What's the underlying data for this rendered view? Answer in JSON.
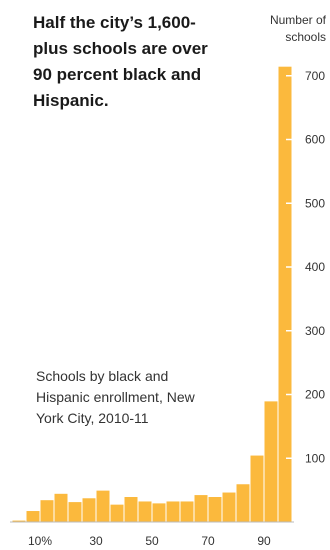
{
  "headline": "Half the city’s 1,600-plus schools are over 90 percent black and Hispanic.",
  "chart_data": {
    "type": "bar",
    "subtitle": "Schools by black and Hispanic enrollment, New York City, 2010-11",
    "ylabel_lines": [
      "Number of",
      "schools"
    ],
    "bar_color": "#fbb93d",
    "ylim": [
      0,
      720
    ],
    "xlim": [
      0,
      100
    ],
    "bin_width": 5,
    "x_ticks": [
      {
        "value": 10,
        "label": "10%"
      },
      {
        "value": 30,
        "label": "30"
      },
      {
        "value": 50,
        "label": "50"
      },
      {
        "value": 70,
        "label": "70"
      },
      {
        "value": 90,
        "label": "90"
      }
    ],
    "y_ticks": [
      {
        "value": 100,
        "label": "100"
      },
      {
        "value": 200,
        "label": "200"
      },
      {
        "value": 300,
        "label": "300"
      },
      {
        "value": 400,
        "label": "400"
      },
      {
        "value": 500,
        "label": "500"
      },
      {
        "value": 600,
        "label": "600"
      },
      {
        "value": 700,
        "label": "700"
      }
    ],
    "bins": [
      {
        "x0": 0,
        "x1": 5,
        "value": 3
      },
      {
        "x0": 5,
        "x1": 10,
        "value": 18
      },
      {
        "x0": 10,
        "x1": 15,
        "value": 35
      },
      {
        "x0": 15,
        "x1": 20,
        "value": 45
      },
      {
        "x0": 20,
        "x1": 25,
        "value": 32
      },
      {
        "x0": 25,
        "x1": 30,
        "value": 38
      },
      {
        "x0": 30,
        "x1": 35,
        "value": 50
      },
      {
        "x0": 35,
        "x1": 40,
        "value": 28
      },
      {
        "x0": 40,
        "x1": 45,
        "value": 40
      },
      {
        "x0": 45,
        "x1": 50,
        "value": 33
      },
      {
        "x0": 50,
        "x1": 55,
        "value": 30
      },
      {
        "x0": 55,
        "x1": 60,
        "value": 33
      },
      {
        "x0": 60,
        "x1": 65,
        "value": 33
      },
      {
        "x0": 65,
        "x1": 70,
        "value": 43
      },
      {
        "x0": 70,
        "x1": 75,
        "value": 40
      },
      {
        "x0": 75,
        "x1": 80,
        "value": 47
      },
      {
        "x0": 80,
        "x1": 85,
        "value": 60
      },
      {
        "x0": 85,
        "x1": 90,
        "value": 105
      },
      {
        "x0": 90,
        "x1": 95,
        "value": 190
      },
      {
        "x0": 95,
        "x1": 100,
        "value": 715
      }
    ]
  }
}
